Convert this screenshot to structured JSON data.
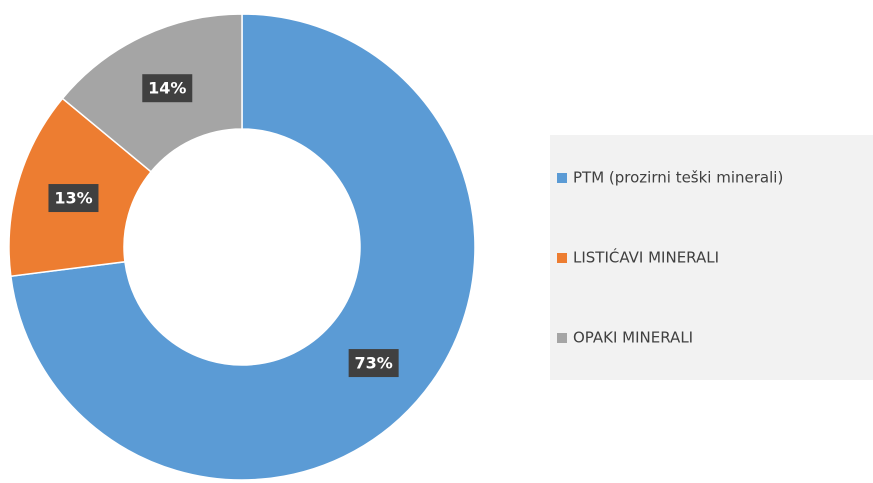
{
  "chart_data": {
    "type": "donut",
    "categories": [
      "PTM (prozirni teški minerali)",
      "LISTIĆAVI MINERALI",
      "OPAKI MINERALI"
    ],
    "values": [
      73,
      13,
      14
    ],
    "value_labels": [
      "73%",
      "13%",
      "14%"
    ],
    "colors": [
      "#5b9bd5",
      "#ed7d31",
      "#a5a5a5"
    ],
    "legend": "right"
  }
}
